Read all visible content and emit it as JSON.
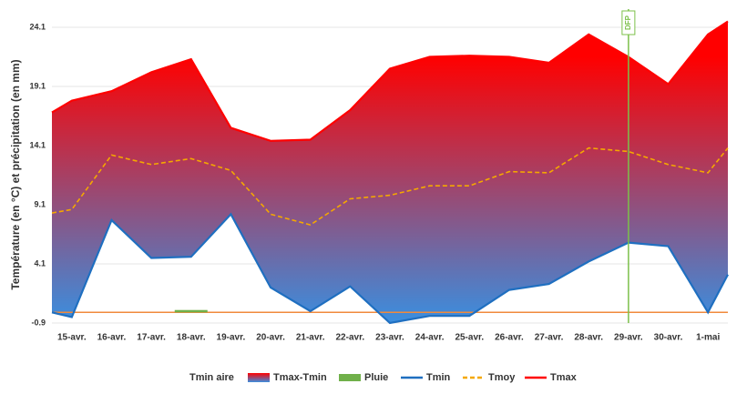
{
  "chart_data": {
    "type": "band-line",
    "y_label": "Température (en °C) et précipitation (en mm)",
    "categories": [
      null,
      "15-avr.",
      "16-avr.",
      "17-avr.",
      "18-avr.",
      "19-avr.",
      "20-avr.",
      "21-avr.",
      "22-avr.",
      "23-avr.",
      "24-avr.",
      "25-avr.",
      "26-avr.",
      "27-avr.",
      "28-avr.",
      "29-avr.",
      "30-avr.",
      "1-mai",
      null
    ],
    "band": {
      "name": "Tmax-Tmin",
      "top_color": "#ff0000",
      "bottom_color": "#3a8fe0"
    },
    "legend_title": "Tmin aire",
    "series": [
      {
        "name": "Pluie",
        "kind": "bar",
        "color": "#70b04a",
        "values": [
          0,
          0,
          0,
          0,
          0.2,
          0,
          0,
          0,
          0,
          0,
          0,
          0,
          0,
          0,
          0,
          0,
          0,
          0,
          0
        ]
      },
      {
        "name": "Tmin",
        "kind": "line",
        "color": "#1f6fc0",
        "values": [
          0.0,
          -0.4,
          7.8,
          4.6,
          4.7,
          8.3,
          2.1,
          0.1,
          2.2,
          -0.9,
          -0.3,
          -0.3,
          1.9,
          2.4,
          4.3,
          5.9,
          5.6,
          0.0,
          3.2
        ]
      },
      {
        "name": "Tmoy",
        "kind": "dashed",
        "color": "#f5a800",
        "values": [
          8.4,
          8.7,
          13.3,
          12.5,
          13.0,
          12.0,
          8.3,
          7.4,
          9.6,
          9.9,
          10.7,
          10.7,
          11.9,
          11.8,
          13.9,
          13.6,
          12.5,
          11.8,
          13.9
        ]
      },
      {
        "name": "Tmax",
        "kind": "line",
        "color": "#ff0000",
        "values": [
          16.9,
          17.9,
          18.7,
          20.3,
          21.4,
          15.6,
          14.5,
          14.6,
          17.1,
          20.6,
          21.6,
          21.7,
          21.6,
          21.1,
          23.5,
          21.6,
          19.3,
          23.5,
          24.6
        ]
      }
    ],
    "annotation": {
      "label": "DFP",
      "category": 15,
      "color": "#7cc04a"
    },
    "ylim": [
      -0.9,
      24.1
    ],
    "yticks": [
      -0.9,
      4.1,
      9.1,
      14.1,
      19.1,
      24.1
    ],
    "grid": true
  }
}
